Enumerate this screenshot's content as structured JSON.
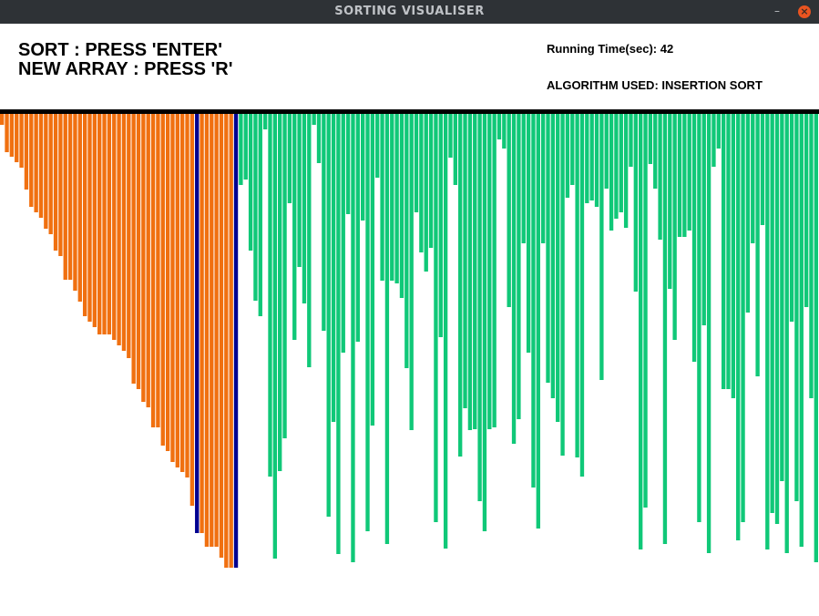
{
  "window": {
    "title": "SORTING VISUALISER",
    "minimize_glyph": "–",
    "close_glyph": "×"
  },
  "instructions": {
    "sort": "SORT : PRESS 'ENTER'",
    "new_array": "NEW ARRAY : PRESS 'R'"
  },
  "info": {
    "running_time": "Running Time(sec): 42",
    "algorithm": "ALGORITHM USED: INSERTION SORT"
  },
  "colors": {
    "sorted": "#f07010",
    "unsorted": "#10c878",
    "active": "#000090",
    "divider": "#000000"
  },
  "chart_data": {
    "type": "bar",
    "value_max": 500,
    "bars": [
      {
        "v": 12,
        "s": "sorted"
      },
      {
        "v": 42,
        "s": "sorted"
      },
      {
        "v": 47,
        "s": "sorted"
      },
      {
        "v": 53,
        "s": "sorted"
      },
      {
        "v": 59,
        "s": "sorted"
      },
      {
        "v": 83,
        "s": "sorted"
      },
      {
        "v": 102,
        "s": "sorted"
      },
      {
        "v": 108,
        "s": "sorted"
      },
      {
        "v": 114,
        "s": "sorted"
      },
      {
        "v": 126,
        "s": "sorted"
      },
      {
        "v": 132,
        "s": "sorted"
      },
      {
        "v": 150,
        "s": "sorted"
      },
      {
        "v": 156,
        "s": "sorted"
      },
      {
        "v": 182,
        "s": "sorted"
      },
      {
        "v": 182,
        "s": "sorted"
      },
      {
        "v": 194,
        "s": "sorted"
      },
      {
        "v": 206,
        "s": "sorted"
      },
      {
        "v": 222,
        "s": "sorted"
      },
      {
        "v": 228,
        "s": "sorted"
      },
      {
        "v": 234,
        "s": "sorted"
      },
      {
        "v": 242,
        "s": "sorted"
      },
      {
        "v": 242,
        "s": "sorted"
      },
      {
        "v": 242,
        "s": "sorted"
      },
      {
        "v": 248,
        "s": "sorted"
      },
      {
        "v": 254,
        "s": "sorted"
      },
      {
        "v": 260,
        "s": "sorted"
      },
      {
        "v": 268,
        "s": "sorted"
      },
      {
        "v": 296,
        "s": "sorted"
      },
      {
        "v": 302,
        "s": "sorted"
      },
      {
        "v": 316,
        "s": "sorted"
      },
      {
        "v": 322,
        "s": "sorted"
      },
      {
        "v": 344,
        "s": "sorted"
      },
      {
        "v": 344,
        "s": "sorted"
      },
      {
        "v": 364,
        "s": "sorted"
      },
      {
        "v": 370,
        "s": "sorted"
      },
      {
        "v": 382,
        "s": "sorted"
      },
      {
        "v": 388,
        "s": "sorted"
      },
      {
        "v": 393,
        "s": "sorted"
      },
      {
        "v": 399,
        "s": "sorted"
      },
      {
        "v": 430,
        "s": "sorted"
      },
      {
        "v": 460,
        "s": "active"
      },
      {
        "v": 460,
        "s": "sorted"
      },
      {
        "v": 475,
        "s": "sorted"
      },
      {
        "v": 475,
        "s": "sorted"
      },
      {
        "v": 475,
        "s": "sorted"
      },
      {
        "v": 487,
        "s": "sorted"
      },
      {
        "v": 498,
        "s": "sorted"
      },
      {
        "v": 498,
        "s": "sorted"
      },
      {
        "v": 498,
        "s": "active"
      },
      {
        "v": 78,
        "s": "unsorted"
      },
      {
        "v": 72,
        "s": "unsorted"
      },
      {
        "v": 150,
        "s": "unsorted"
      },
      {
        "v": 205,
        "s": "unsorted"
      },
      {
        "v": 222,
        "s": "unsorted"
      },
      {
        "v": 17,
        "s": "unsorted"
      },
      {
        "v": 398,
        "s": "unsorted"
      },
      {
        "v": 488,
        "s": "unsorted"
      },
      {
        "v": 392,
        "s": "unsorted"
      },
      {
        "v": 356,
        "s": "unsorted"
      },
      {
        "v": 98,
        "s": "unsorted"
      },
      {
        "v": 248,
        "s": "unsorted"
      },
      {
        "v": 168,
        "s": "unsorted"
      },
      {
        "v": 208,
        "s": "unsorted"
      },
      {
        "v": 278,
        "s": "unsorted"
      },
      {
        "v": 12,
        "s": "unsorted"
      },
      {
        "v": 54,
        "s": "unsorted"
      },
      {
        "v": 238,
        "s": "unsorted"
      },
      {
        "v": 442,
        "s": "unsorted"
      },
      {
        "v": 338,
        "s": "unsorted"
      },
      {
        "v": 483,
        "s": "unsorted"
      },
      {
        "v": 262,
        "s": "unsorted"
      },
      {
        "v": 110,
        "s": "unsorted"
      },
      {
        "v": 492,
        "s": "unsorted"
      },
      {
        "v": 250,
        "s": "unsorted"
      },
      {
        "v": 117,
        "s": "unsorted"
      },
      {
        "v": 458,
        "s": "unsorted"
      },
      {
        "v": 342,
        "s": "unsorted"
      },
      {
        "v": 70,
        "s": "unsorted"
      },
      {
        "v": 183,
        "s": "unsorted"
      },
      {
        "v": 472,
        "s": "unsorted"
      },
      {
        "v": 183,
        "s": "unsorted"
      },
      {
        "v": 186,
        "s": "unsorted"
      },
      {
        "v": 202,
        "s": "unsorted"
      },
      {
        "v": 279,
        "s": "unsorted"
      },
      {
        "v": 347,
        "s": "unsorted"
      },
      {
        "v": 108,
        "s": "unsorted"
      },
      {
        "v": 152,
        "s": "unsorted"
      },
      {
        "v": 173,
        "s": "unsorted"
      },
      {
        "v": 147,
        "s": "unsorted"
      },
      {
        "v": 448,
        "s": "unsorted"
      },
      {
        "v": 245,
        "s": "unsorted"
      },
      {
        "v": 477,
        "s": "unsorted"
      },
      {
        "v": 48,
        "s": "unsorted"
      },
      {
        "v": 78,
        "s": "unsorted"
      },
      {
        "v": 376,
        "s": "unsorted"
      },
      {
        "v": 323,
        "s": "unsorted"
      },
      {
        "v": 347,
        "s": "unsorted"
      },
      {
        "v": 346,
        "s": "unsorted"
      },
      {
        "v": 425,
        "s": "unsorted"
      },
      {
        "v": 458,
        "s": "unsorted"
      },
      {
        "v": 346,
        "s": "unsorted"
      },
      {
        "v": 344,
        "s": "unsorted"
      },
      {
        "v": 28,
        "s": "unsorted"
      },
      {
        "v": 38,
        "s": "unsorted"
      },
      {
        "v": 212,
        "s": "unsorted"
      },
      {
        "v": 362,
        "s": "unsorted"
      },
      {
        "v": 335,
        "s": "unsorted"
      },
      {
        "v": 142,
        "s": "unsorted"
      },
      {
        "v": 262,
        "s": "unsorted"
      },
      {
        "v": 410,
        "s": "unsorted"
      },
      {
        "v": 455,
        "s": "unsorted"
      },
      {
        "v": 142,
        "s": "unsorted"
      },
      {
        "v": 295,
        "s": "unsorted"
      },
      {
        "v": 312,
        "s": "unsorted"
      },
      {
        "v": 338,
        "s": "unsorted"
      },
      {
        "v": 375,
        "s": "unsorted"
      },
      {
        "v": 92,
        "s": "unsorted"
      },
      {
        "v": 78,
        "s": "unsorted"
      },
      {
        "v": 377,
        "s": "unsorted"
      },
      {
        "v": 398,
        "s": "unsorted"
      },
      {
        "v": 98,
        "s": "unsorted"
      },
      {
        "v": 95,
        "s": "unsorted"
      },
      {
        "v": 102,
        "s": "unsorted"
      },
      {
        "v": 292,
        "s": "unsorted"
      },
      {
        "v": 82,
        "s": "unsorted"
      },
      {
        "v": 128,
        "s": "unsorted"
      },
      {
        "v": 115,
        "s": "unsorted"
      },
      {
        "v": 108,
        "s": "unsorted"
      },
      {
        "v": 125,
        "s": "unsorted"
      },
      {
        "v": 58,
        "s": "unsorted"
      },
      {
        "v": 195,
        "s": "unsorted"
      },
      {
        "v": 478,
        "s": "unsorted"
      },
      {
        "v": 432,
        "s": "unsorted"
      },
      {
        "v": 55,
        "s": "unsorted"
      },
      {
        "v": 82,
        "s": "unsorted"
      },
      {
        "v": 138,
        "s": "unsorted"
      },
      {
        "v": 472,
        "s": "unsorted"
      },
      {
        "v": 192,
        "s": "unsorted"
      },
      {
        "v": 248,
        "s": "unsorted"
      },
      {
        "v": 135,
        "s": "unsorted"
      },
      {
        "v": 135,
        "s": "unsorted"
      },
      {
        "v": 128,
        "s": "unsorted"
      },
      {
        "v": 272,
        "s": "unsorted"
      },
      {
        "v": 448,
        "s": "unsorted"
      },
      {
        "v": 232,
        "s": "unsorted"
      },
      {
        "v": 482,
        "s": "unsorted"
      },
      {
        "v": 58,
        "s": "unsorted"
      },
      {
        "v": 38,
        "s": "unsorted"
      },
      {
        "v": 302,
        "s": "unsorted"
      },
      {
        "v": 302,
        "s": "unsorted"
      },
      {
        "v": 312,
        "s": "unsorted"
      },
      {
        "v": 468,
        "s": "unsorted"
      },
      {
        "v": 448,
        "s": "unsorted"
      },
      {
        "v": 218,
        "s": "unsorted"
      },
      {
        "v": 142,
        "s": "unsorted"
      },
      {
        "v": 288,
        "s": "unsorted"
      },
      {
        "v": 122,
        "s": "unsorted"
      },
      {
        "v": 478,
        "s": "unsorted"
      },
      {
        "v": 438,
        "s": "unsorted"
      },
      {
        "v": 450,
        "s": "unsorted"
      },
      {
        "v": 403,
        "s": "unsorted"
      },
      {
        "v": 482,
        "s": "unsorted"
      },
      {
        "v": 228,
        "s": "unsorted"
      },
      {
        "v": 425,
        "s": "unsorted"
      },
      {
        "v": 475,
        "s": "unsorted"
      },
      {
        "v": 212,
        "s": "unsorted"
      },
      {
        "v": 312,
        "s": "unsorted"
      },
      {
        "v": 492,
        "s": "unsorted"
      }
    ]
  }
}
